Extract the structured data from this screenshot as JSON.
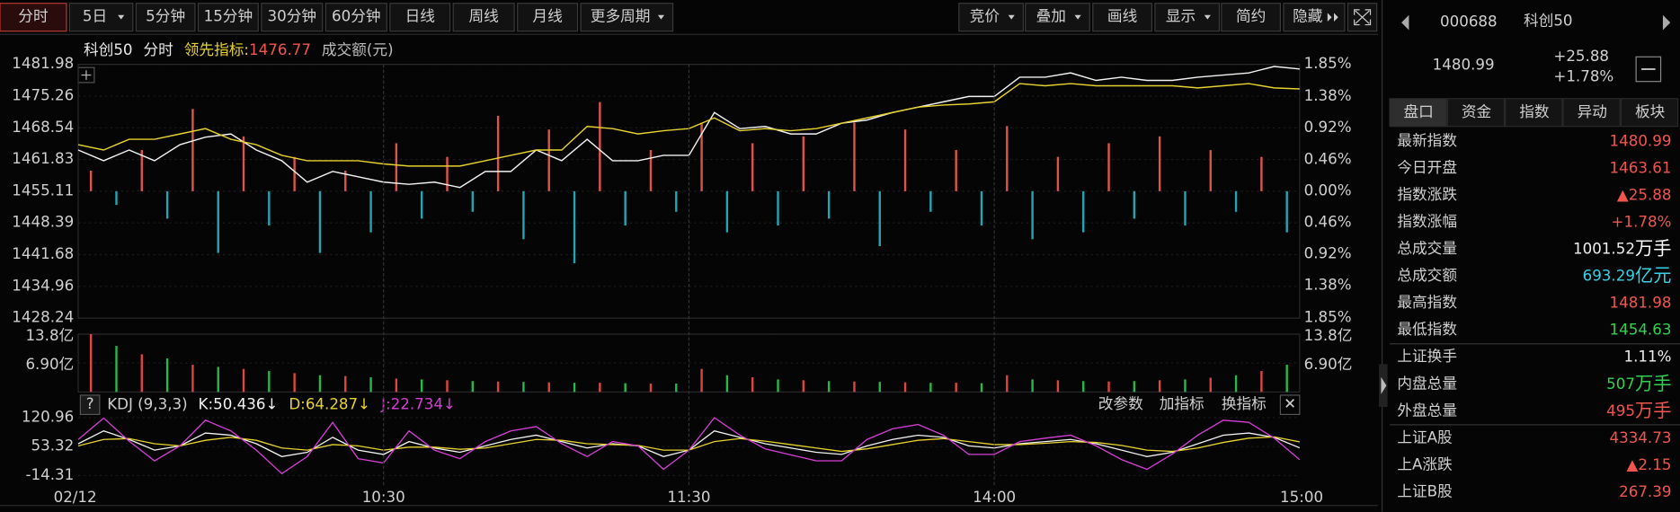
{
  "toolbar": {
    "left": [
      {
        "label": "分时",
        "active": true
      },
      {
        "label": "5日",
        "dropdown": true
      },
      {
        "label": "5分钟"
      },
      {
        "label": "15分钟"
      },
      {
        "label": "30分钟"
      },
      {
        "label": "60分钟"
      },
      {
        "label": "日线"
      },
      {
        "label": "周线"
      },
      {
        "label": "月线"
      },
      {
        "label": "更多周期",
        "dropdown": true
      }
    ],
    "right": [
      {
        "label": "竞价",
        "dropdown": true
      },
      {
        "label": "叠加",
        "dropdown": true
      },
      {
        "label": "画线"
      },
      {
        "label": "显示",
        "dropdown": true
      },
      {
        "label": "简约"
      },
      {
        "label": "隐藏",
        "more": true
      }
    ]
  },
  "chart_header": {
    "period": "分时",
    "amount_label": "成交额(元)"
  },
  "chart_data": [
    {
      "type": "line",
      "ylim": [
        1428.24,
        1481.98
      ],
      "yticks": [
        1481.98,
        1475.26,
        1468.54,
        1461.83,
        1455.11,
        1448.39,
        1441.68,
        1434.96,
        1428.24
      ],
      "y2lim": [
        -1.85,
        1.85
      ],
      "y2ticks": [
        {
          "value": 1.85,
          "label": "1.85%"
        },
        {
          "value": 1.38,
          "label": "1.38%"
        },
        {
          "value": 0.92,
          "label": "0.92%"
        },
        {
          "value": 0.46,
          "label": "0.46%"
        },
        {
          "value": 0,
          "label": "0.00%"
        },
        {
          "value": -0.46,
          "label": "0.46%"
        },
        {
          "value": -0.92,
          "label": "0.92%"
        },
        {
          "value": -1.38,
          "label": "1.38%"
        },
        {
          "value": -1.85,
          "label": "1.85%"
        }
      ],
      "grid": true,
      "series": [
        {
          "name": "科创50",
          "type": "line",
          "color": "#f2f2f2",
          "values": [
            1463.84,
            1461.57,
            1463.84,
            1461.57,
            1464.97,
            1466.56,
            1467.24,
            1463.84,
            1461.57,
            1457.04,
            1459.3,
            1458.17,
            1457.04,
            1456.58,
            1457.04,
            1455.9,
            1459.3,
            1459.3,
            1463.84,
            1461.57,
            1466.11,
            1461.57,
            1461.57,
            1462.71,
            1462.71,
            1471.78,
            1468.37,
            1468.83,
            1467.24,
            1467.24,
            1469.51,
            1470.19,
            1471.78,
            1472.91,
            1474.04,
            1475.18,
            1475.18,
            1479.26,
            1479.26,
            1480.17,
            1478.58,
            1479.26,
            1478.58,
            1478.58,
            1479.26,
            1479.71,
            1480.17,
            1481.53,
            1480.99
          ]
        },
        {
          "name": "领先指标:",
          "type": "line",
          "color": "#e6d12e",
          "values": [
            1464.97,
            1463.84,
            1466.11,
            1466.11,
            1467.24,
            1468.37,
            1466.11,
            1464.97,
            1462.71,
            1461.57,
            1461.57,
            1461.57,
            1460.89,
            1460.44,
            1460.44,
            1460.44,
            1461.57,
            1462.71,
            1463.84,
            1463.84,
            1468.83,
            1468.37,
            1467.24,
            1467.92,
            1468.37,
            1470.64,
            1467.92,
            1468.37,
            1467.92,
            1468.37,
            1469.51,
            1470.64,
            1471.78,
            1472.91,
            1473.36,
            1473.59,
            1474.04,
            1477.9,
            1477.44,
            1477.9,
            1477.44,
            1477.44,
            1477.44,
            1477.44,
            1476.99,
            1477.44,
            1477.9,
            1476.99,
            1476.77
          ]
        },
        {
          "type": "bar",
          "axis": "y2",
          "colors": [
            "#e0524c",
            "#23a6b4"
          ],
          "values": [
            0.3,
            -0.2,
            0.6,
            -0.4,
            1.2,
            -0.9,
            0.8,
            -0.5,
            0.5,
            -0.9,
            0.3,
            -0.6,
            0.7,
            -0.4,
            0.5,
            -0.3,
            1.1,
            -0.7,
            0.9,
            -1.05,
            1.3,
            -0.5,
            0.6,
            -0.3,
            1.0,
            -0.6,
            0.7,
            -0.5,
            0.8,
            -0.4,
            1.0,
            -0.8,
            0.9,
            -0.3,
            0.6,
            -0.5,
            0.95,
            -0.7,
            0.5,
            -0.6,
            0.7,
            -0.4,
            0.8,
            -0.5,
            0.6,
            -0.3,
            0.5,
            -0.6
          ]
        }
      ]
    },
    {
      "type": "bar",
      "ylim": [
        0,
        13.8
      ],
      "yticks": [
        {
          "value": 13.8,
          "label": "13.8亿"
        },
        {
          "value": 6.9,
          "label": "6.90亿"
        }
      ],
      "colors": [
        "#e0453f",
        "#27b84a"
      ],
      "values": [
        13.8,
        11,
        9,
        8,
        6.5,
        6,
        5.5,
        5,
        4.5,
        4,
        3.8,
        3.5,
        3.2,
        3,
        2.8,
        2.6,
        2.5,
        2.4,
        2.3,
        2.2,
        2.2,
        2.1,
        2,
        2,
        5.5,
        4,
        3.5,
        3,
        2.8,
        2.6,
        2.5,
        2.4,
        2.3,
        2.2,
        2.2,
        2.1,
        4,
        3,
        2.8,
        2.6,
        2.5,
        2.6,
        2.8,
        3,
        3.4,
        4,
        5,
        6.5
      ]
    },
    {
      "type": "line",
      "title": "KDJ (9,3,3)",
      "help": "?",
      "ylim": [
        -14.31,
        120.96
      ],
      "yticks": [
        120.96,
        53.32,
        -14.31
      ],
      "xticks": [
        {
          "value": 0,
          "label": "02/12"
        },
        {
          "value": 12,
          "label": "10:30"
        },
        {
          "value": 24,
          "label": "11:30"
        },
        {
          "value": 36,
          "label": "14:00"
        },
        {
          "value": 48,
          "label": "15:00"
        }
      ],
      "buttons": [
        "改参数",
        "加指标",
        "换指标"
      ],
      "close": "✕",
      "series": [
        {
          "name": "K:",
          "trend": "↓",
          "color": "#f2f2f2",
          "values": [
            60,
            90,
            70,
            45,
            55,
            85,
            80,
            60,
            30,
            40,
            75,
            45,
            35,
            65,
            50,
            40,
            55,
            70,
            80,
            65,
            50,
            60,
            55,
            30,
            45,
            90,
            75,
            60,
            50,
            40,
            35,
            55,
            70,
            80,
            75,
            55,
            50,
            60,
            65,
            70,
            60,
            45,
            30,
            40,
            60,
            80,
            85,
            75,
            50.436
          ]
        },
        {
          "name": "D:",
          "trend": "↓",
          "color": "#e6d12e",
          "values": [
            55,
            70,
            72,
            60,
            55,
            68,
            75,
            68,
            50,
            45,
            58,
            55,
            45,
            52,
            52,
            47,
            50,
            60,
            70,
            68,
            60,
            58,
            56,
            45,
            45,
            65,
            72,
            66,
            58,
            50,
            42,
            48,
            58,
            68,
            72,
            65,
            58,
            58,
            61,
            65,
            63,
            56,
            45,
            42,
            50,
            63,
            73,
            76,
            64.287
          ]
        },
        {
          "name": "J:",
          "trend": "↓",
          "color": "#d63fd6",
          "values": [
            70,
            120,
            66,
            20,
            55,
            115,
            90,
            45,
            -10,
            30,
            110,
            25,
            15,
            90,
            45,
            25,
            65,
            90,
            100,
            60,
            30,
            65,
            55,
            0,
            45,
            120.96,
            80,
            48,
            34,
            20,
            20,
            70,
            95,
            105,
            80,
            35,
            35,
            65,
            73,
            80,
            55,
            23,
            0,
            36,
            80,
            115,
            110,
            73,
            22.734
          ]
        }
      ]
    }
  ],
  "quote": {
    "code": "000688",
    "name": "科创50",
    "price": 1480.99,
    "change": "+25.88",
    "change_pct": "+1.78%",
    "tabs": [
      "盘口",
      "资金",
      "指数",
      "异动",
      "板块"
    ],
    "rows": [
      {
        "label": "最新指数",
        "value": "1480.99",
        "color": "#f0564e"
      },
      {
        "label": "今日开盘",
        "value": "1463.61",
        "color": "#f0564e"
      },
      {
        "label": "指数涨跌",
        "value": "▲25.88",
        "color": "#f0564e"
      },
      {
        "label": "指数涨幅",
        "value": "+1.78%",
        "color": "#f0564e"
      },
      {
        "label": "总成交量",
        "value": "1001.52",
        "unit": "万手",
        "color": "#eeeeee"
      },
      {
        "label": "总成交额",
        "value": "693.29",
        "unit": "亿元",
        "color": "#35d3e6"
      },
      {
        "label": "最高指数",
        "value": "1481.98",
        "color": "#f0564e"
      },
      {
        "label": "最低指数",
        "value": "1454.63",
        "color": "#2fd14f"
      },
      {
        "label": "上证换手",
        "value": "1.11%",
        "color": "#eeeeee"
      },
      {
        "label": "内盘总量",
        "value": "507",
        "unit": "万手",
        "color": "#2fd14f"
      },
      {
        "label": "外盘总量",
        "value": "495",
        "unit": "万手",
        "color": "#f0564e"
      },
      {
        "label": "上证A股",
        "value": "4334.73",
        "color": "#f0564e"
      },
      {
        "label": "上A涨跌",
        "value": "▲2.15",
        "color": "#f0564e"
      },
      {
        "label": "上证B股",
        "value": "267.39",
        "color": "#f0564e"
      }
    ]
  }
}
